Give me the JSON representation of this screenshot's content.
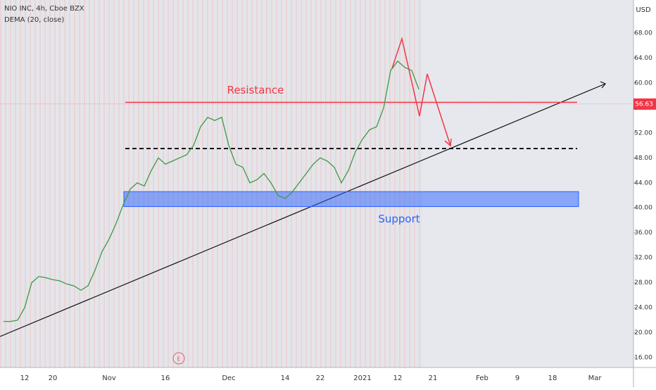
{
  "chart_data": {
    "type": "line",
    "title": "NIO INC, 4h, Cboe BZX",
    "subtitle": "DEMA (20, close)",
    "y_axis_label": "USD",
    "categories": [
      null,
      null,
      null,
      "12",
      null,
      null,
      null,
      "20",
      null,
      null,
      null,
      null,
      null,
      null,
      null,
      "Nov",
      null,
      null,
      null,
      null,
      null,
      null,
      null,
      "16",
      null,
      null,
      null,
      null,
      null,
      null,
      null,
      null,
      "Dec",
      null,
      null,
      null,
      null,
      null,
      null,
      null,
      "14",
      null,
      null,
      null,
      null,
      "22",
      null,
      null,
      null,
      null,
      null,
      "2021",
      null,
      null,
      null,
      null,
      "12",
      null,
      null,
      null,
      null,
      "21",
      null,
      null,
      null,
      null,
      null,
      null,
      "Feb",
      null,
      null,
      null,
      null,
      "9",
      null,
      null,
      null,
      null,
      "18",
      null,
      null,
      null,
      null,
      null,
      "Mar",
      null,
      null,
      null,
      null,
      null
    ],
    "series": [
      {
        "name": "DEMA (20, close)",
        "color": "#3d9a45",
        "values": [
          21.8,
          21.8,
          22,
          24,
          28,
          29,
          28.8,
          28.5,
          28.3,
          27.8,
          27.5,
          26.8,
          27.5,
          30,
          33,
          35,
          37.5,
          40.5,
          43,
          44,
          43.5,
          46,
          48,
          47,
          47.5,
          48,
          48.5,
          50,
          53,
          54.5,
          54,
          54.5,
          50,
          47,
          46.5,
          44,
          44.5,
          45.5,
          44,
          42,
          41.5,
          42.5,
          44,
          45.5,
          47,
          48,
          47.5,
          46.5,
          44,
          46,
          49,
          51,
          52.5,
          53,
          56,
          62,
          63.5,
          62.5,
          62,
          59,
          null,
          null,
          null,
          null,
          null,
          null,
          null,
          null,
          null,
          null,
          null,
          null,
          null,
          null,
          null,
          null,
          null,
          null,
          null,
          null,
          null,
          null,
          null,
          null,
          null,
          null,
          null,
          null,
          null,
          null
        ]
      }
    ],
    "ylim": [
      14.65,
      73.3
    ],
    "yticks": [
      {
        "value": 16,
        "label": "16.00"
      },
      {
        "value": 20,
        "label": "20.00"
      },
      {
        "value": 24,
        "label": "24.00"
      },
      {
        "value": 28,
        "label": "28.00"
      },
      {
        "value": 32,
        "label": "32.00"
      },
      {
        "value": 36,
        "label": "36.00"
      },
      {
        "value": 40,
        "label": "40.00"
      },
      {
        "value": 44,
        "label": "44.00"
      },
      {
        "value": 48,
        "label": "48.00"
      },
      {
        "value": 52,
        "label": "52.00"
      },
      {
        "value": 56,
        "label": "56.00"
      },
      {
        "value": 60,
        "label": "60.00"
      },
      {
        "value": 64,
        "label": "64.00"
      },
      {
        "value": 68,
        "label": "68.00"
      }
    ],
    "last_price": 56.63,
    "resistance": {
      "label": "Resistance",
      "value": 56.9,
      "color": "#f23645"
    },
    "support": {
      "label": "Support",
      "range": [
        40.2,
        42.6
      ],
      "color": "#2962ff"
    },
    "dashed_level": 49.5,
    "event_marker": "E"
  }
}
